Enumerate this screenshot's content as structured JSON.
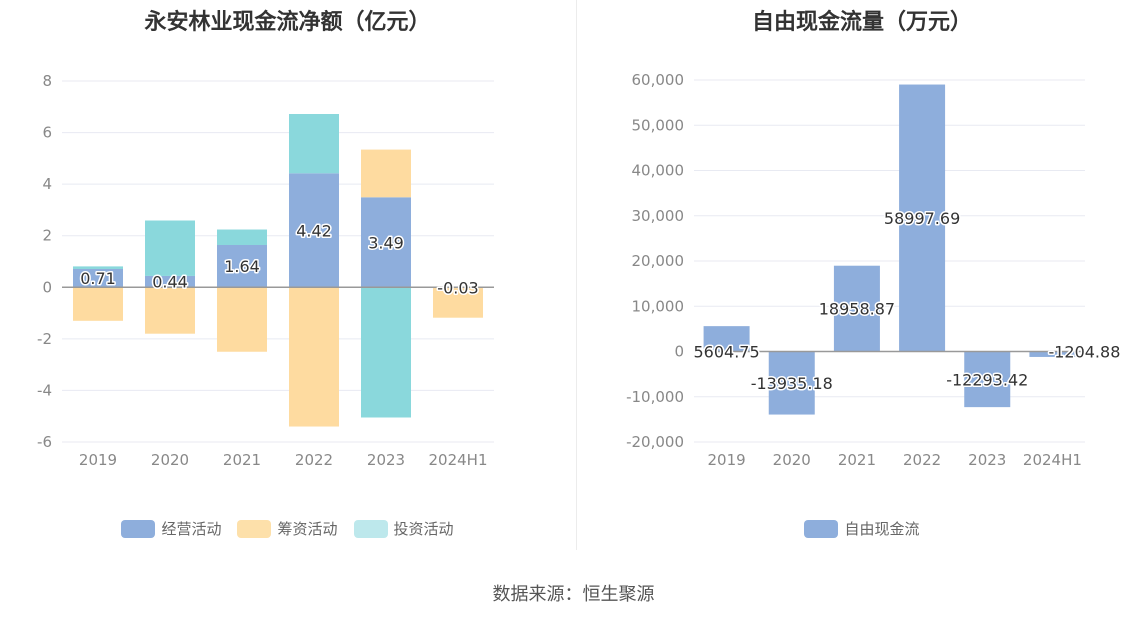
{
  "charts": {
    "left": {
      "title": "永安林业现金流净额（亿元）",
      "legend": [
        {
          "label": "经营活动",
          "color": "#8eaedc"
        },
        {
          "label": "筹资活动",
          "color": "#fde0aa"
        },
        {
          "label": "投资活动",
          "color": "#bde8ec"
        }
      ]
    },
    "right": {
      "title": "自由现金流量（万元）",
      "legend": [
        {
          "label": "自由现金流",
          "color": "#8eaedc"
        }
      ]
    }
  },
  "source_text": "数据来源：恒生聚源",
  "chart_data": [
    {
      "type": "bar",
      "stacked": true,
      "title": "永安林业现金流净额（亿元）",
      "categories": [
        "2019",
        "2020",
        "2021",
        "2022",
        "2023",
        "2024H1"
      ],
      "ylim": [
        -6,
        8
      ],
      "yticks": [
        -6,
        -4,
        -2,
        0,
        2,
        4,
        6,
        8
      ],
      "grid": true,
      "legend_position": "bottom",
      "series": [
        {
          "name": "经营活动",
          "color": "#8eaedc",
          "values": [
            0.71,
            0.44,
            1.64,
            4.42,
            3.49,
            -0.03
          ],
          "labels": [
            "0.71",
            "0.44",
            "1.64",
            "4.42",
            "3.49",
            "-0.03"
          ]
        },
        {
          "name": "筹资活动",
          "color": "#fedba0",
          "values": [
            -1.3,
            -1.8,
            -2.5,
            -5.4,
            1.85,
            -1.15
          ]
        },
        {
          "name": "投资活动",
          "color": "#8ad8dc",
          "values": [
            0.1,
            2.15,
            0.6,
            2.3,
            -5.05,
            0
          ]
        }
      ]
    },
    {
      "type": "bar",
      "title": "自由现金流量（万元）",
      "categories": [
        "2019",
        "2020",
        "2021",
        "2022",
        "2023",
        "2024H1"
      ],
      "ylim": [
        -20000,
        60000
      ],
      "yticks": [
        -20000,
        -10000,
        0,
        10000,
        20000,
        30000,
        40000,
        50000,
        60000
      ],
      "ytick_labels": [
        "-20,000",
        "-10,000",
        "0",
        "10,000",
        "20,000",
        "30,000",
        "40,000",
        "50,000",
        "60,000"
      ],
      "grid": true,
      "legend_position": "bottom",
      "series": [
        {
          "name": "自由现金流",
          "color": "#8eaedc",
          "values": [
            5604.75,
            -13935.18,
            18958.87,
            58997.69,
            -12293.42,
            -1204.88
          ],
          "labels": [
            "5604.75",
            "-13935.18",
            "18958.87",
            "58997.69",
            "-12293.42",
            "-1204.88"
          ]
        }
      ]
    }
  ]
}
